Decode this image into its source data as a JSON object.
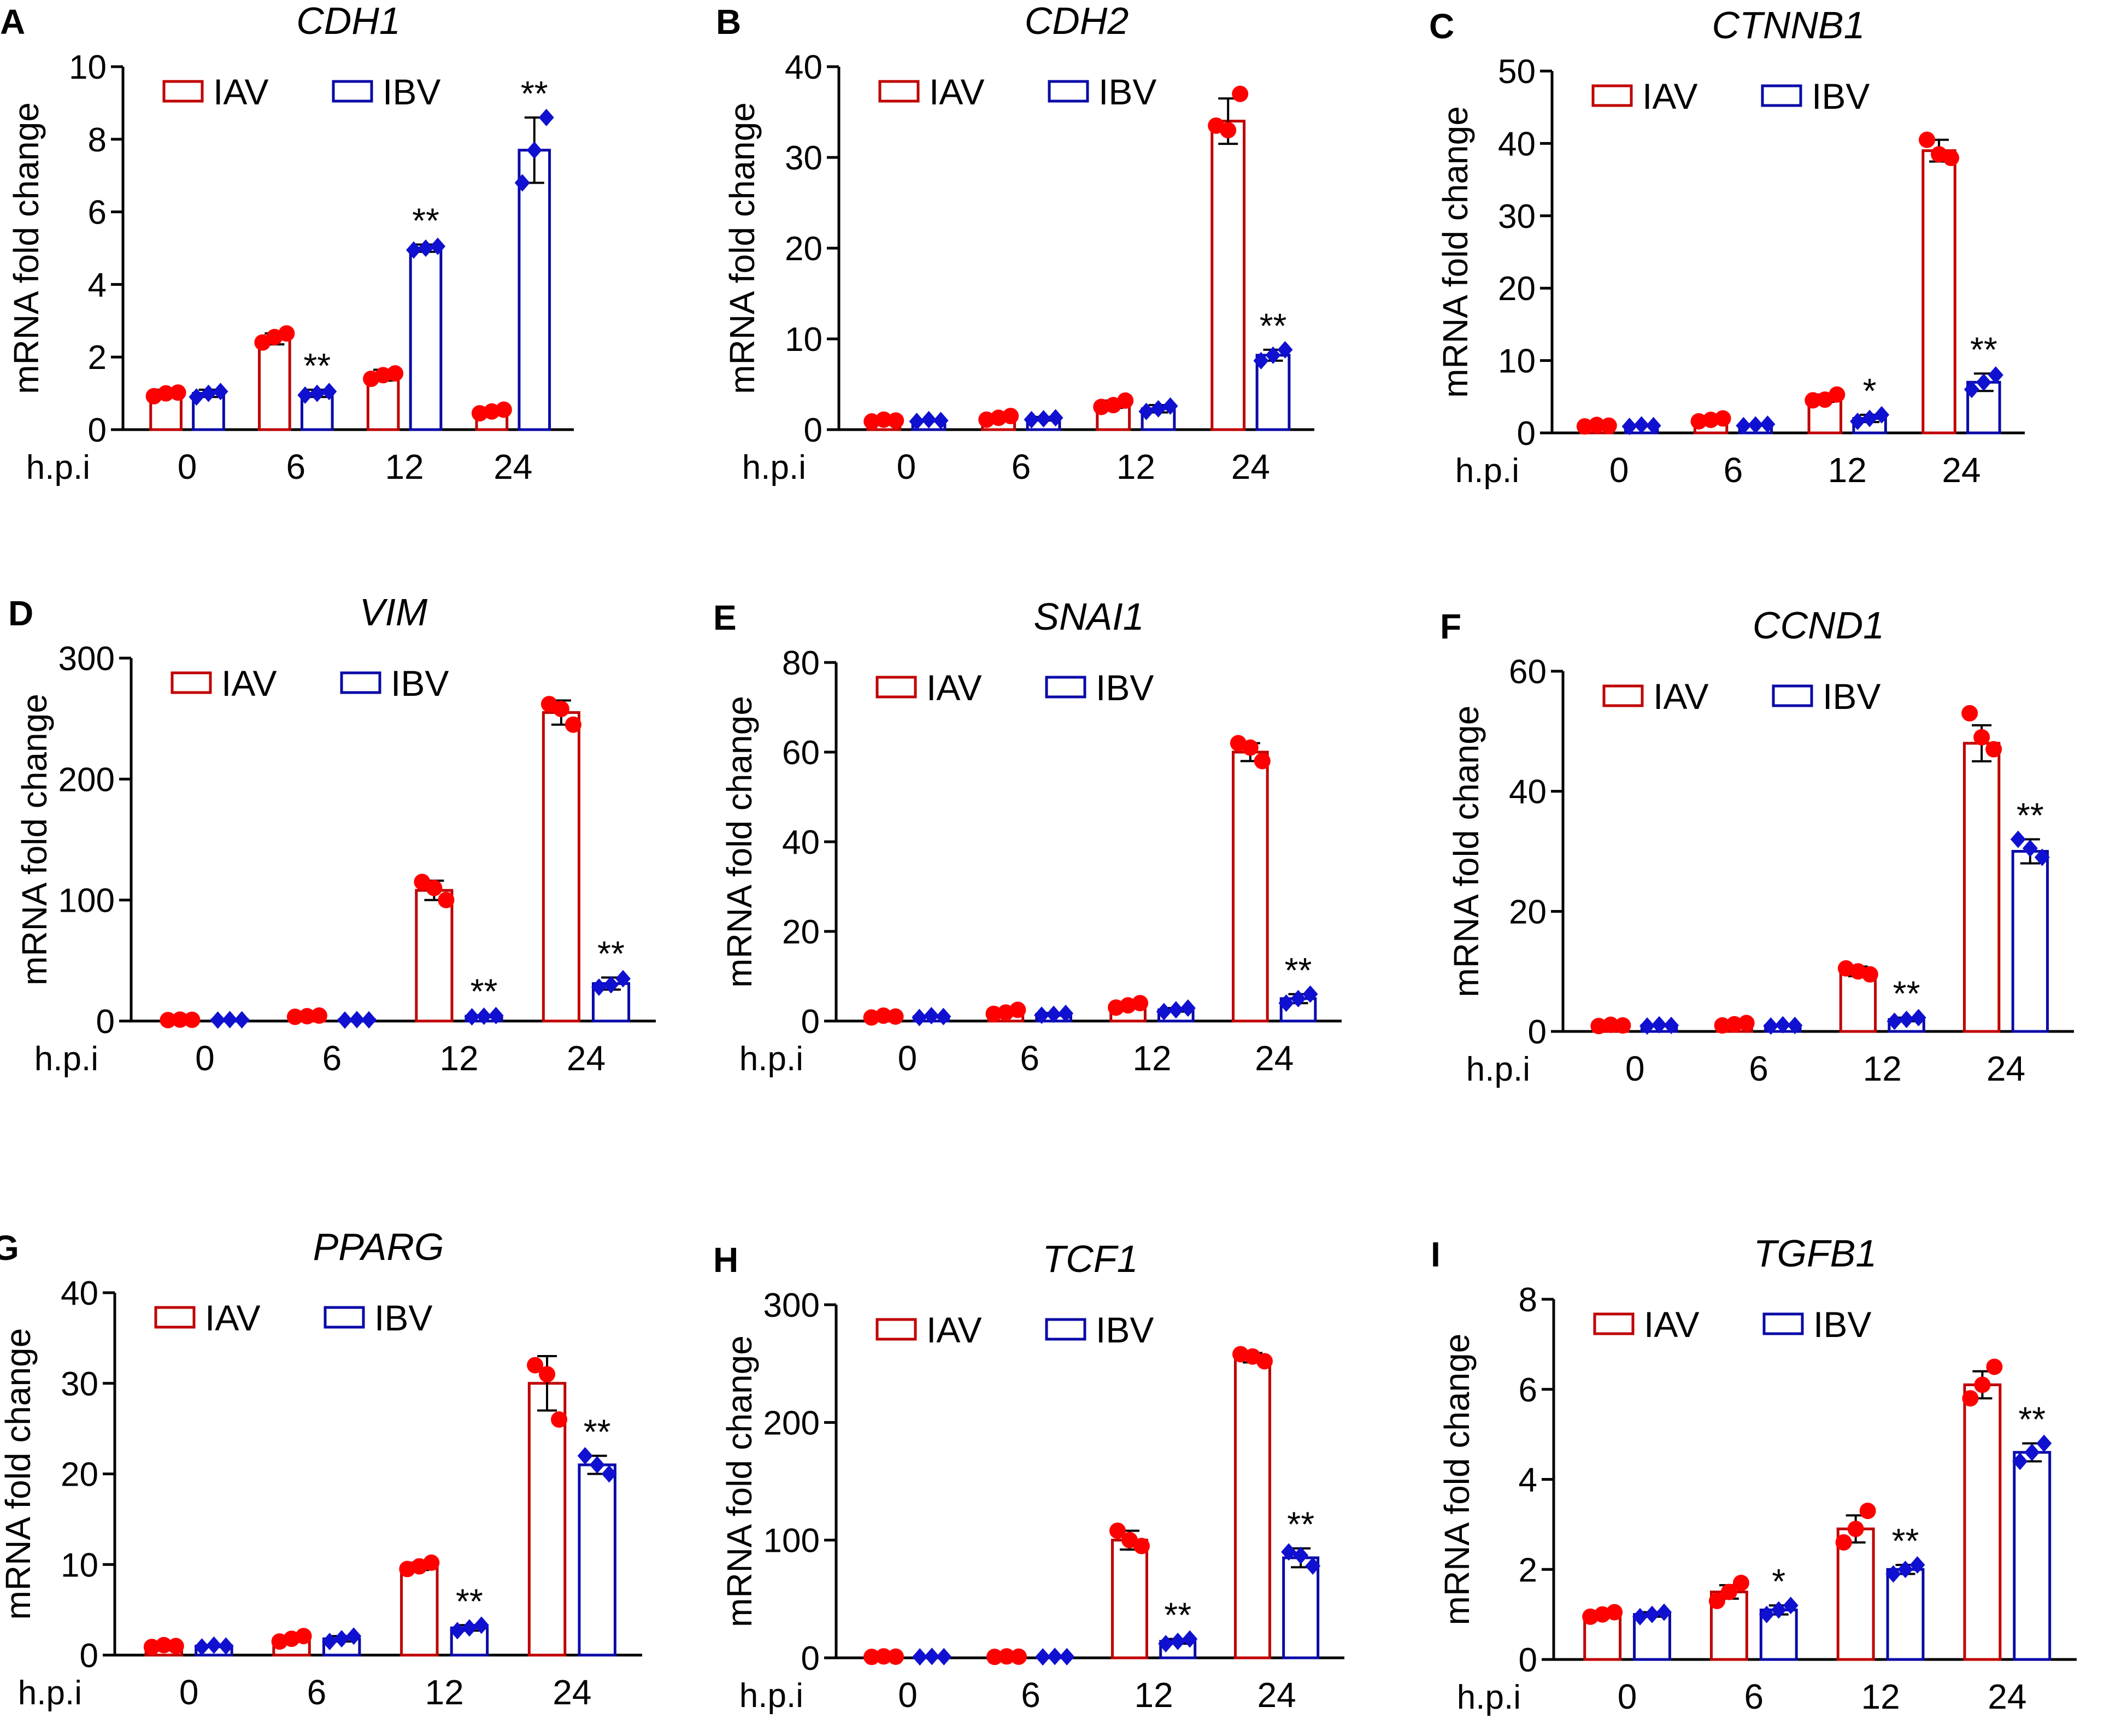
{
  "figure": {
    "colors": {
      "iav": "#c00000",
      "ibv": "#0a0aa8",
      "iav_point": "#ff0000",
      "ibv_point": "#1010d0",
      "axis": "#000000"
    },
    "group_axis_label": "h.p.i"
  },
  "chart_data": [
    {
      "panel": "A",
      "gene": "CDH1",
      "type": "bar",
      "ylabel": "mRNA fold change",
      "categories": [
        "0",
        "6",
        "12",
        "24"
      ],
      "ylim": [
        0,
        10
      ],
      "yticks": [
        0,
        2,
        4,
        6,
        8,
        10
      ],
      "series": [
        {
          "name": "IAV",
          "values": [
            1.0,
            2.5,
            1.5,
            0.5
          ],
          "errors": [
            0.1,
            0.15,
            0.15,
            0.1
          ],
          "points": [
            [
              0.92,
              1.02,
              1.0
            ],
            [
              2.4,
              2.65,
              2.55
            ],
            [
              1.4,
              1.55,
              1.5
            ],
            [
              0.45,
              0.55,
              0.5
            ]
          ],
          "sig": [
            "",
            "",
            "",
            ""
          ]
        },
        {
          "name": "IBV",
          "values": [
            1.0,
            1.0,
            5.0,
            7.7
          ],
          "errors": [
            0.1,
            0.1,
            0.1,
            0.9
          ],
          "points": [
            [
              0.9,
              1.05,
              1.0
            ],
            [
              0.95,
              1.05,
              1.0
            ],
            [
              4.95,
              5.05,
              5.0
            ],
            [
              6.8,
              8.6,
              7.7
            ]
          ],
          "sig": [
            "",
            "**",
            "**",
            "**"
          ]
        }
      ]
    },
    {
      "panel": "B",
      "gene": "CDH2",
      "type": "bar",
      "ylabel": "mRNA fold change",
      "categories": [
        "0",
        "6",
        "12",
        "24"
      ],
      "ylim": [
        0,
        40
      ],
      "yticks": [
        0,
        10,
        20,
        30,
        40
      ],
      "series": [
        {
          "name": "IAV",
          "values": [
            1.0,
            1.3,
            2.8,
            34.0
          ],
          "errors": [
            0.1,
            0.3,
            0.4,
            2.5
          ],
          "points": [
            [
              0.9,
              1.0,
              1.1
            ],
            [
              1.1,
              1.5,
              1.3
            ],
            [
              2.5,
              3.2,
              2.7
            ],
            [
              33.5,
              37.0,
              33.0
            ]
          ],
          "sig": [
            "",
            "",
            "",
            ""
          ]
        },
        {
          "name": "IBV",
          "values": [
            1.0,
            1.2,
            2.3,
            8.2
          ],
          "errors": [
            0.1,
            0.2,
            0.4,
            0.6
          ],
          "points": [
            [
              0.9,
              1.0,
              1.1
            ],
            [
              1.1,
              1.3,
              1.2
            ],
            [
              2.0,
              2.6,
              2.3
            ],
            [
              7.6,
              8.8,
              8.2
            ]
          ],
          "sig": [
            "",
            "",
            "",
            "**"
          ]
        }
      ]
    },
    {
      "panel": "C",
      "gene": "CTNNB1",
      "type": "bar",
      "ylabel": "mRNA fold change",
      "categories": [
        "0",
        "6",
        "12",
        "24"
      ],
      "ylim": [
        0,
        50
      ],
      "yticks": [
        0,
        10,
        20,
        30,
        40,
        50
      ],
      "series": [
        {
          "name": "IAV",
          "values": [
            1.0,
            1.8,
            4.8,
            39.0
          ],
          "errors": [
            0.1,
            0.3,
            0.5,
            1.5
          ],
          "points": [
            [
              0.9,
              1.0,
              1.1
            ],
            [
              1.6,
              2.0,
              1.8
            ],
            [
              4.5,
              5.3,
              4.6
            ],
            [
              40.5,
              38.0,
              38.5
            ]
          ],
          "sig": [
            "",
            "",
            "",
            ""
          ]
        },
        {
          "name": "IBV",
          "values": [
            1.0,
            1.1,
            2.0,
            7.0
          ],
          "errors": [
            0.1,
            0.1,
            0.5,
            1.2
          ],
          "points": [
            [
              0.9,
              1.0,
              1.1
            ],
            [
              1.0,
              1.2,
              1.1
            ],
            [
              1.6,
              2.5,
              2.0
            ],
            [
              6.0,
              8.0,
              7.0
            ]
          ],
          "sig": [
            "",
            "",
            "*",
            "**"
          ]
        }
      ]
    },
    {
      "panel": "D",
      "gene": "VIM",
      "type": "bar",
      "ylabel": "mRNA fold change",
      "categories": [
        "0",
        "6",
        "12",
        "24"
      ],
      "ylim": [
        0,
        300
      ],
      "yticks": [
        0,
        100,
        200,
        300
      ],
      "series": [
        {
          "name": "IAV",
          "values": [
            1.0,
            4.0,
            108.0,
            255.0
          ],
          "errors": [
            0.5,
            0.8,
            8.0,
            10.0
          ],
          "points": [
            [
              0.8,
              1.0,
              1.2
            ],
            [
              3.5,
              4.5,
              4.0
            ],
            [
              115.0,
              100.0,
              110.0
            ],
            [
              262.0,
              245.0,
              258.0
            ]
          ],
          "sig": [
            "",
            "",
            "",
            ""
          ]
        },
        {
          "name": "IBV",
          "values": [
            1.0,
            1.0,
            4.0,
            31.0
          ],
          "errors": [
            0.3,
            0.3,
            0.8,
            5.0
          ],
          "points": [
            [
              0.8,
              1.0,
              1.2
            ],
            [
              0.8,
              1.0,
              1.2
            ],
            [
              3.5,
              4.5,
              4.0
            ],
            [
              28.0,
              35.0,
              30.0
            ]
          ],
          "sig": [
            "",
            "",
            "**",
            "**"
          ]
        }
      ]
    },
    {
      "panel": "E",
      "gene": "SNAI1",
      "type": "bar",
      "ylabel": "mRNA fold change",
      "categories": [
        "0",
        "6",
        "12",
        "24"
      ],
      "ylim": [
        0,
        80
      ],
      "yticks": [
        0,
        20,
        40,
        60,
        80
      ],
      "series": [
        {
          "name": "IAV",
          "values": [
            1.0,
            2.0,
            3.5,
            60.0
          ],
          "errors": [
            0.2,
            0.5,
            0.6,
            2.0
          ],
          "points": [
            [
              0.8,
              1.0,
              1.2
            ],
            [
              1.6,
              2.5,
              1.9
            ],
            [
              3.0,
              4.0,
              3.5
            ],
            [
              62.0,
              58.0,
              61.0
            ]
          ],
          "sig": [
            "",
            "",
            "",
            ""
          ]
        },
        {
          "name": "IBV",
          "values": [
            1.0,
            1.5,
            2.5,
            5.0
          ],
          "errors": [
            0.2,
            0.3,
            0.4,
            1.0
          ],
          "points": [
            [
              0.8,
              1.0,
              1.2
            ],
            [
              1.3,
              1.7,
              1.5
            ],
            [
              2.1,
              2.9,
              2.5
            ],
            [
              4.0,
              6.0,
              5.0
            ]
          ],
          "sig": [
            "",
            "",
            "",
            "**"
          ]
        }
      ]
    },
    {
      "panel": "F",
      "gene": "CCND1",
      "type": "bar",
      "ylabel": "mRNA fold change",
      "categories": [
        "0",
        "6",
        "12",
        "24"
      ],
      "ylim": [
        0,
        60
      ],
      "yticks": [
        0,
        20,
        40,
        60
      ],
      "series": [
        {
          "name": "IAV",
          "values": [
            1.0,
            1.2,
            10.0,
            48.0
          ],
          "errors": [
            0.1,
            0.2,
            0.8,
            3.0
          ],
          "points": [
            [
              0.9,
              1.0,
              1.1
            ],
            [
              1.0,
              1.4,
              1.2
            ],
            [
              10.5,
              9.5,
              10.0
            ],
            [
              53.0,
              47.0,
              49.0
            ]
          ],
          "sig": [
            "",
            "",
            "",
            ""
          ]
        },
        {
          "name": "IBV",
          "values": [
            1.0,
            1.0,
            2.0,
            30.0
          ],
          "errors": [
            0.1,
            0.1,
            0.3,
            2.0
          ],
          "points": [
            [
              0.9,
              1.0,
              1.1
            ],
            [
              0.9,
              1.0,
              1.1
            ],
            [
              1.7,
              2.3,
              2.0
            ],
            [
              32.0,
              29.0,
              30.5
            ]
          ],
          "sig": [
            "",
            "",
            "**",
            "**"
          ]
        }
      ]
    },
    {
      "panel": "G",
      "gene": "PPARG",
      "type": "bar",
      "ylabel": "mRNA fold change",
      "categories": [
        "0",
        "6",
        "12",
        "24"
      ],
      "ylim": [
        0,
        40
      ],
      "yticks": [
        0,
        10,
        20,
        30,
        40
      ],
      "series": [
        {
          "name": "IAV",
          "values": [
            1.0,
            1.8,
            9.8,
            30.0
          ],
          "errors": [
            0.1,
            0.3,
            0.4,
            3.0
          ],
          "points": [
            [
              0.9,
              1.0,
              1.1
            ],
            [
              1.5,
              2.1,
              1.8
            ],
            [
              9.5,
              10.2,
              9.8
            ],
            [
              32.0,
              26.0,
              31.0
            ]
          ],
          "sig": [
            "",
            "",
            "",
            ""
          ]
        },
        {
          "name": "IBV",
          "values": [
            1.0,
            1.8,
            3.0,
            21.0
          ],
          "errors": [
            0.1,
            0.3,
            0.3,
            1.0
          ],
          "points": [
            [
              0.9,
              1.0,
              1.1
            ],
            [
              1.5,
              2.1,
              1.8
            ],
            [
              2.7,
              3.3,
              3.0
            ],
            [
              22.0,
              20.0,
              21.0
            ]
          ],
          "sig": [
            "",
            "",
            "**",
            "**"
          ]
        }
      ]
    },
    {
      "panel": "H",
      "gene": "TCF1",
      "type": "bar",
      "ylabel": "mRNA fold change",
      "categories": [
        "0",
        "6",
        "12",
        "24"
      ],
      "ylim": [
        0,
        300
      ],
      "yticks": [
        0,
        100,
        200,
        300
      ],
      "series": [
        {
          "name": "IAV",
          "values": [
            1.0,
            1.0,
            100.0,
            255.0
          ],
          "errors": [
            0.3,
            0.3,
            8.0,
            4.0
          ],
          "points": [
            [
              0.8,
              1.0,
              1.2
            ],
            [
              0.8,
              1.0,
              1.2
            ],
            [
              108.0,
              95.0,
              100.0
            ],
            [
              258.0,
              252.0,
              256.0
            ]
          ],
          "sig": [
            "",
            "",
            "",
            ""
          ]
        },
        {
          "name": "IBV",
          "values": [
            1.0,
            1.0,
            14.0,
            85.0
          ],
          "errors": [
            0.3,
            0.3,
            2.0,
            8.0
          ],
          "points": [
            [
              0.8,
              1.0,
              1.2
            ],
            [
              0.8,
              1.0,
              1.2
            ],
            [
              12.0,
              16.0,
              14.0
            ],
            [
              90.0,
              78.0,
              87.0
            ]
          ],
          "sig": [
            "",
            "",
            "**",
            "**"
          ]
        }
      ]
    },
    {
      "panel": "I",
      "gene": "TGFB1",
      "type": "bar",
      "ylabel": "mRNA fold change",
      "categories": [
        "0",
        "6",
        "12",
        "24"
      ],
      "ylim": [
        0,
        8
      ],
      "yticks": [
        0,
        2,
        4,
        6,
        8
      ],
      "series": [
        {
          "name": "IAV",
          "values": [
            1.0,
            1.5,
            2.9,
            6.1
          ],
          "errors": [
            0.05,
            0.15,
            0.3,
            0.3
          ],
          "points": [
            [
              0.95,
              1.05,
              1.0
            ],
            [
              1.3,
              1.7,
              1.5
            ],
            [
              2.6,
              3.3,
              2.9
            ],
            [
              5.8,
              6.5,
              6.1
            ]
          ],
          "sig": [
            "",
            "",
            "",
            ""
          ]
        },
        {
          "name": "IBV",
          "values": [
            1.0,
            1.1,
            2.0,
            4.6
          ],
          "errors": [
            0.05,
            0.1,
            0.1,
            0.2
          ],
          "points": [
            [
              0.95,
              1.05,
              1.0
            ],
            [
              1.0,
              1.2,
              1.1
            ],
            [
              1.9,
              2.1,
              2.0
            ],
            [
              4.4,
              4.8,
              4.6
            ]
          ],
          "sig": [
            "",
            "*",
            "**",
            "**"
          ]
        }
      ]
    }
  ]
}
